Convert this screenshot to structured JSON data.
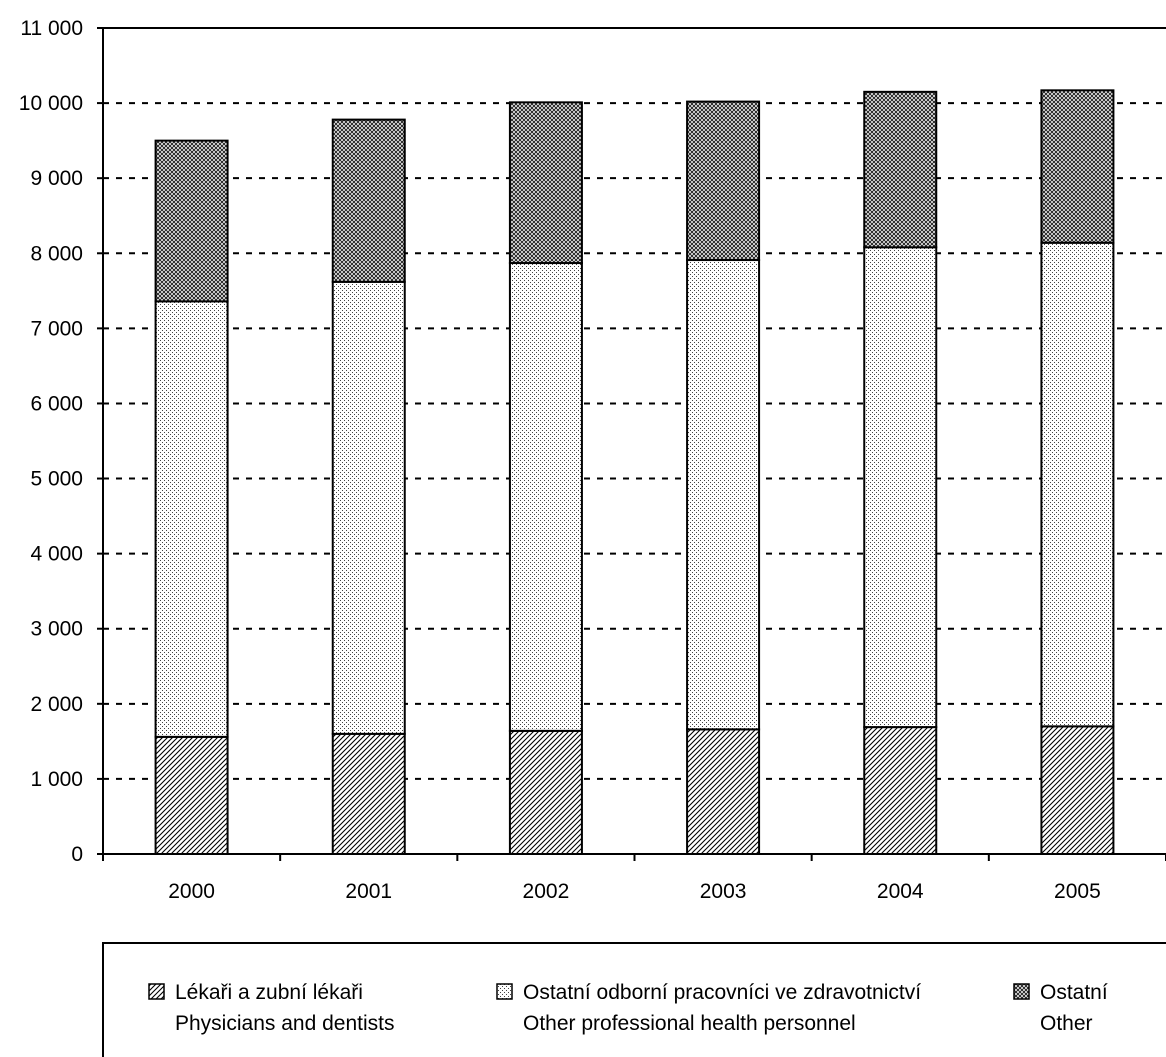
{
  "chart_data": {
    "type": "bar",
    "stacked": true,
    "categories": [
      "2000",
      "2001",
      "2002",
      "2003",
      "2004",
      "2005"
    ],
    "series": [
      {
        "name": "Lékaři a zubní lékaři\nPhysicians and dentists",
        "pattern": "diagonal-hatch",
        "values": [
          1560,
          1600,
          1640,
          1660,
          1690,
          1700
        ]
      },
      {
        "name": "Ostatní odborní pracovníci ve zdravotnictví\nOther professional health personnel",
        "pattern": "fine-dots",
        "values": [
          5800,
          6020,
          6230,
          6250,
          6390,
          6440
        ]
      },
      {
        "name": "Ostatní\nOther",
        "pattern": "cross-hatch",
        "values": [
          2140,
          2160,
          2140,
          2110,
          2070,
          2030
        ]
      }
    ],
    "yticks": [
      "0",
      "1 000",
      "2 000",
      "3 000",
      "4 000",
      "5 000",
      "6 000",
      "7 000",
      "8 000",
      "9 000",
      "10 000",
      "11 000"
    ],
    "ylim": [
      0,
      11000
    ],
    "grid": "horizontal-dashed",
    "legend_position": "bottom",
    "title": "",
    "xlabel": "",
    "ylabel": ""
  }
}
